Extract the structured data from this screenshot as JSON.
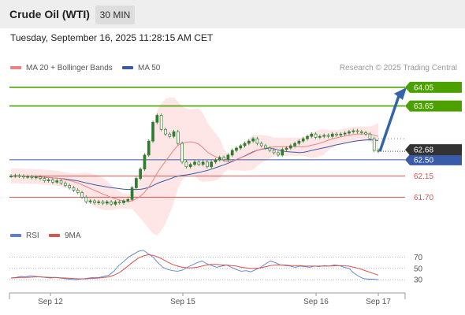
{
  "header": {
    "title": "Crude Oil (WTI)",
    "timeframe": "30 MIN"
  },
  "timestamp": "Tuesday, September 16, 2025 11:28:15 AM CET",
  "legend": {
    "ma20_label": "MA 20 + Bollinger Bands",
    "ma50_label": "MA 50",
    "credit": "Research © 2025 Trading Central"
  },
  "rsi_legend": {
    "rsi_label": "RSI",
    "ma_label": "9MA"
  },
  "colors": {
    "resistance": "#4ca000",
    "support": "#d9534f",
    "pivot": "#3a5ba8",
    "current": "#333333",
    "candle": "#2e7d32",
    "ma20": "#f08080",
    "ma50": "#3a5ba8",
    "band_fill": "#ffe0e0",
    "arrow": "#3464a8",
    "rsi": "#5b7fd1",
    "rsi_ma": "#d9534f"
  },
  "chart_data": {
    "type": "candlestick",
    "title": "Crude Oil (WTI)",
    "timeframe": "30 MIN",
    "x_tick_labels": [
      "Sep 12",
      "Sep 15",
      "Sep 16",
      "Sep 17"
    ],
    "y_range": [
      61.2,
      64.3
    ],
    "current_price": "62.68",
    "levels": [
      {
        "price": 64.05,
        "label": "64.05",
        "kind": "resistance"
      },
      {
        "price": 63.65,
        "label": "63.65",
        "kind": "resistance"
      },
      {
        "price": 62.5,
        "label": "62.50",
        "kind": "pivot"
      },
      {
        "price": 62.15,
        "label": "62.15",
        "kind": "support"
      },
      {
        "price": 61.7,
        "label": "61.70",
        "kind": "support"
      }
    ],
    "approx_close_series": [
      62.15,
      62.16,
      62.15,
      62.13,
      62.14,
      62.12,
      62.13,
      62.1,
      62.05,
      62.07,
      62.02,
      62.05,
      62.0,
      61.95,
      61.9,
      61.85,
      61.8,
      61.7,
      61.6,
      61.62,
      61.58,
      61.6,
      61.57,
      61.6,
      61.55,
      61.6,
      61.58,
      61.62,
      61.65,
      61.9,
      62.1,
      62.3,
      62.6,
      62.9,
      63.3,
      63.45,
      63.15,
      63.05,
      63.0,
      63.1,
      62.85,
      62.45,
      62.35,
      62.4,
      62.45,
      62.4,
      62.45,
      62.35,
      62.45,
      62.5,
      62.55,
      62.5,
      62.6,
      62.7,
      62.75,
      62.8,
      62.85,
      62.9,
      62.95,
      62.85,
      62.8,
      62.75,
      62.7,
      62.65,
      62.6,
      62.72,
      62.75,
      62.8,
      62.85,
      62.9,
      62.95,
      63.0,
      63.05,
      62.98,
      63.0,
      63.02,
      63.0,
      63.05,
      63.03,
      63.05,
      63.07,
      63.1,
      63.12,
      63.1,
      63.08,
      63.05,
      62.95,
      62.7,
      62.68
    ],
    "indicators": [
      {
        "name": "MA 20 + Bollinger Bands"
      },
      {
        "name": "MA 50"
      }
    ],
    "rsi": {
      "levels": [
        70,
        50,
        30
      ],
      "values": [
        33,
        34,
        36,
        35,
        37,
        36,
        35,
        34,
        33,
        34,
        33,
        32,
        31,
        30,
        31,
        32,
        33,
        34,
        34,
        36,
        38,
        45,
        55,
        62,
        70,
        75,
        80,
        82,
        76,
        70,
        60,
        52,
        48,
        46,
        45,
        47,
        52,
        56,
        60,
        63,
        58,
        55,
        52,
        54,
        56,
        52,
        48,
        45,
        46,
        44,
        48,
        52,
        58,
        63,
        60,
        56,
        55,
        54,
        52,
        54,
        53,
        52,
        54,
        53,
        55,
        54,
        56,
        55,
        52,
        50,
        42,
        36,
        32,
        31,
        31,
        30
      ],
      "ma_values": [
        33,
        33.5,
        34,
        34,
        34.5,
        35,
        35,
        34.5,
        34,
        34,
        33.5,
        33,
        32.5,
        32,
        31.5,
        31.5,
        32,
        32.5,
        33,
        34,
        35,
        38,
        42,
        48,
        55,
        62,
        68,
        72,
        74,
        73,
        70,
        66,
        61,
        57,
        54,
        52,
        51,
        51,
        52,
        54,
        56,
        57,
        57,
        56,
        56,
        55,
        54,
        52,
        51,
        50,
        50,
        51,
        53,
        55,
        56,
        56,
        56,
        55,
        55,
        55,
        54,
        54,
        54,
        54,
        54,
        54,
        54.5,
        55,
        54.5,
        54,
        52,
        50,
        47,
        44,
        41,
        38
      ]
    }
  }
}
